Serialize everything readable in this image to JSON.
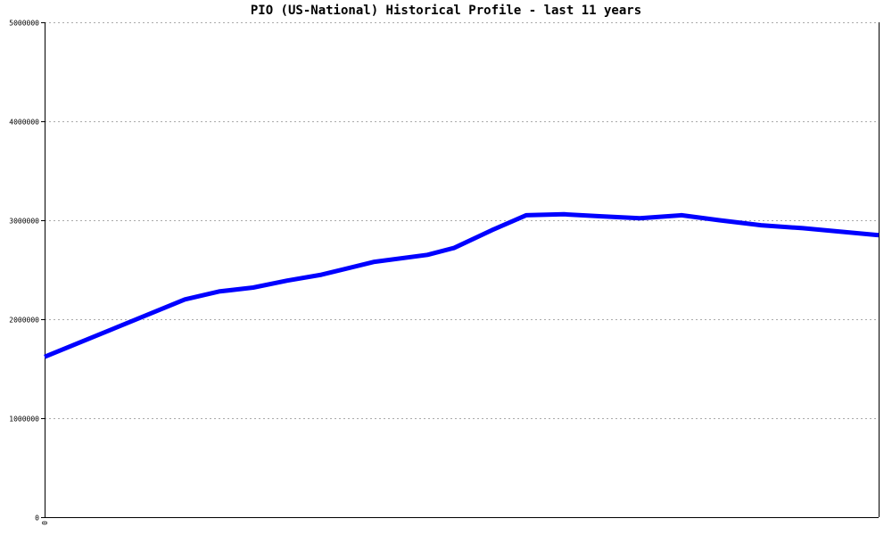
{
  "chart_data": {
    "type": "line",
    "title": "PIO (US-National) Historical Profile - last 11 years",
    "xlabel": "",
    "ylabel": "",
    "ylim": [
      0,
      5000000
    ],
    "yticks": [
      0,
      1000000,
      2000000,
      3000000,
      4000000,
      5000000
    ],
    "ytick_labels": [
      "0",
      "1000000",
      "2000000",
      "3000000",
      "4000000",
      "5000000"
    ],
    "xticks": [
      0
    ],
    "xtick_labels": [
      "0"
    ],
    "xlim": [
      0,
      11
    ],
    "grid": true,
    "legend": false,
    "series": [
      {
        "color": "#0000ff",
        "x": [
          0,
          1.85,
          2.3,
          2.75,
          3.2,
          3.65,
          4.35,
          5.05,
          5.4,
          5.9,
          6.35,
          6.85,
          7.35,
          7.85,
          8.4,
          8.9,
          9.45,
          10.0,
          11.0
        ],
        "values": [
          1620000,
          2200000,
          2280000,
          2320000,
          2390000,
          2450000,
          2580000,
          2650000,
          2720000,
          2900000,
          3050000,
          3060000,
          3040000,
          3020000,
          3050000,
          3000000,
          2950000,
          2920000,
          2850000
        ]
      }
    ]
  }
}
